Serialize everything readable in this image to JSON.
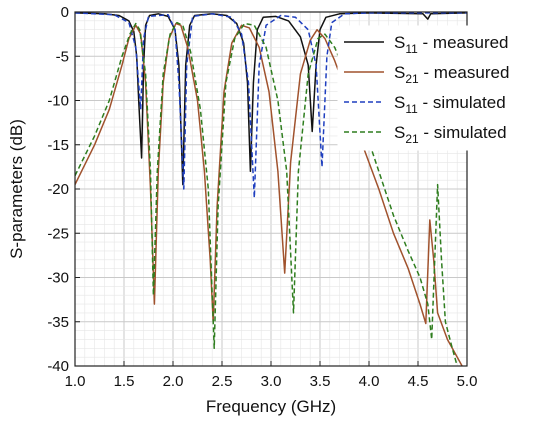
{
  "chart_data": {
    "type": "line",
    "xlabel": "Frequency (GHz)",
    "ylabel": "S-parameters (dB)",
    "xlim": [
      1.0,
      5.0
    ],
    "ylim": [
      -40,
      0
    ],
    "grid": "on (major and minor)",
    "legend_position": "top-right",
    "x_ticks": [
      "1.0",
      "1.5",
      "2.0",
      "2.5",
      "3.0",
      "3.5",
      "4.0",
      "4.5",
      "5.0"
    ],
    "y_ticks": [
      "0",
      "-5",
      "-10",
      "-15",
      "-20",
      "-25",
      "-30",
      "-35",
      "-40"
    ],
    "series": [
      {
        "name": "S11 - measured",
        "legend_main": "S",
        "legend_sub": "11",
        "legend_rest": " - measured",
        "color": "#111111",
        "dash": "solid",
        "points": [
          [
            1.0,
            -0.1
          ],
          [
            1.3,
            -0.2
          ],
          [
            1.45,
            -0.4
          ],
          [
            1.55,
            -1.0
          ],
          [
            1.6,
            -2.2
          ],
          [
            1.63,
            -5
          ],
          [
            1.65,
            -10
          ],
          [
            1.68,
            -16.5
          ],
          [
            1.7,
            -6
          ],
          [
            1.72,
            -1.5
          ],
          [
            1.76,
            -0.4
          ],
          [
            1.85,
            -0.2
          ],
          [
            1.95,
            -0.5
          ],
          [
            2.02,
            -2
          ],
          [
            2.06,
            -6
          ],
          [
            2.1,
            -19.5
          ],
          [
            2.13,
            -6
          ],
          [
            2.17,
            -1.5
          ],
          [
            2.22,
            -0.4
          ],
          [
            2.4,
            -0.2
          ],
          [
            2.55,
            -0.4
          ],
          [
            2.65,
            -1.3
          ],
          [
            2.72,
            -3.5
          ],
          [
            2.76,
            -8
          ],
          [
            2.79,
            -18
          ],
          [
            2.82,
            -8
          ],
          [
            2.86,
            -2
          ],
          [
            2.92,
            -0.6
          ],
          [
            3.05,
            -0.5
          ],
          [
            3.18,
            -1.0
          ],
          [
            3.3,
            -2.8
          ],
          [
            3.38,
            -6
          ],
          [
            3.42,
            -13.5
          ],
          [
            3.46,
            -6
          ],
          [
            3.5,
            -2
          ],
          [
            3.56,
            -0.6
          ],
          [
            3.7,
            -0.2
          ],
          [
            4.0,
            -0.1
          ],
          [
            4.55,
            -0.2
          ],
          [
            4.6,
            -0.8
          ],
          [
            4.63,
            -0.2
          ],
          [
            5.0,
            -0.1
          ]
        ]
      },
      {
        "name": "S21 - measured",
        "legend_main": "S",
        "legend_sub": "21",
        "legend_rest": " - measured",
        "color": "#a0522d",
        "dash": "solid",
        "points": [
          [
            1.0,
            -19.5
          ],
          [
            1.2,
            -15
          ],
          [
            1.35,
            -11
          ],
          [
            1.48,
            -6
          ],
          [
            1.55,
            -3
          ],
          [
            1.62,
            -1.5
          ],
          [
            1.67,
            -2.5
          ],
          [
            1.72,
            -8
          ],
          [
            1.77,
            -20
          ],
          [
            1.81,
            -33
          ],
          [
            1.85,
            -18
          ],
          [
            1.9,
            -8
          ],
          [
            1.96,
            -3
          ],
          [
            2.03,
            -1.3
          ],
          [
            2.08,
            -1.5
          ],
          [
            2.15,
            -4
          ],
          [
            2.25,
            -10
          ],
          [
            2.32,
            -18
          ],
          [
            2.38,
            -28
          ],
          [
            2.41,
            -35
          ],
          [
            2.45,
            -22
          ],
          [
            2.52,
            -9
          ],
          [
            2.6,
            -3.5
          ],
          [
            2.7,
            -1.5
          ],
          [
            2.78,
            -1.8
          ],
          [
            2.88,
            -4
          ],
          [
            2.98,
            -9
          ],
          [
            3.07,
            -18
          ],
          [
            3.14,
            -29.5
          ],
          [
            3.2,
            -17
          ],
          [
            3.3,
            -7
          ],
          [
            3.4,
            -3.2
          ],
          [
            3.47,
            -2.0
          ],
          [
            3.55,
            -3
          ],
          [
            3.65,
            -5.5
          ],
          [
            3.8,
            -10
          ],
          [
            3.95,
            -15.5
          ],
          [
            4.1,
            -20
          ],
          [
            4.25,
            -25
          ],
          [
            4.4,
            -29
          ],
          [
            4.52,
            -33
          ],
          [
            4.58,
            -35.2
          ],
          [
            4.62,
            -23.5
          ],
          [
            4.66,
            -28
          ],
          [
            4.7,
            -34
          ],
          [
            4.8,
            -37
          ],
          [
            4.95,
            -40
          ]
        ]
      },
      {
        "name": "S11 - simulated",
        "legend_main": "S",
        "legend_sub": "11",
        "legend_rest": " - simulated",
        "color": "#1f3fbf",
        "dash": "dashed",
        "points": [
          [
            1.0,
            -0.1
          ],
          [
            1.4,
            -0.3
          ],
          [
            1.55,
            -1.2
          ],
          [
            1.62,
            -4
          ],
          [
            1.67,
            -11
          ],
          [
            1.7,
            -3
          ],
          [
            1.75,
            -0.5
          ],
          [
            1.95,
            -0.3
          ],
          [
            2.02,
            -2
          ],
          [
            2.06,
            -8
          ],
          [
            2.11,
            -20
          ],
          [
            2.14,
            -6
          ],
          [
            2.2,
            -0.5
          ],
          [
            2.4,
            -0.2
          ],
          [
            2.6,
            -0.6
          ],
          [
            2.7,
            -2.5
          ],
          [
            2.77,
            -8
          ],
          [
            2.83,
            -21
          ],
          [
            2.88,
            -6
          ],
          [
            2.95,
            -1.5
          ],
          [
            3.1,
            -0.4
          ],
          [
            3.25,
            -0.6
          ],
          [
            3.38,
            -2
          ],
          [
            3.46,
            -6
          ],
          [
            3.52,
            -17.5
          ],
          [
            3.57,
            -5
          ],
          [
            3.62,
            -1.2
          ],
          [
            3.75,
            -0.2
          ],
          [
            4.0,
            -0.1
          ],
          [
            5.0,
            -0.1
          ]
        ]
      },
      {
        "name": "S21 - simulated",
        "legend_main": "S",
        "legend_sub": "21",
        "legend_rest": " - simulated",
        "color": "#2e7d1e",
        "dash": "dashed",
        "points": [
          [
            1.0,
            -18.5
          ],
          [
            1.2,
            -14
          ],
          [
            1.35,
            -10
          ],
          [
            1.48,
            -5
          ],
          [
            1.56,
            -2.5
          ],
          [
            1.62,
            -1.3
          ],
          [
            1.66,
            -2.0
          ],
          [
            1.72,
            -7
          ],
          [
            1.77,
            -18
          ],
          [
            1.8,
            -32
          ],
          [
            1.84,
            -18
          ],
          [
            1.9,
            -7
          ],
          [
            1.97,
            -2.5
          ],
          [
            2.04,
            -1.2
          ],
          [
            2.1,
            -1.5
          ],
          [
            2.18,
            -4.5
          ],
          [
            2.28,
            -11
          ],
          [
            2.36,
            -20
          ],
          [
            2.42,
            -38
          ],
          [
            2.46,
            -22
          ],
          [
            2.54,
            -8
          ],
          [
            2.63,
            -3
          ],
          [
            2.73,
            -1.3
          ],
          [
            2.83,
            -1.5
          ],
          [
            2.95,
            -4
          ],
          [
            3.07,
            -10
          ],
          [
            3.16,
            -18
          ],
          [
            3.23,
            -34
          ],
          [
            3.28,
            -18
          ],
          [
            3.38,
            -7
          ],
          [
            3.48,
            -3
          ],
          [
            3.55,
            -2.5
          ],
          [
            3.65,
            -4
          ],
          [
            3.8,
            -8
          ],
          [
            3.95,
            -13
          ],
          [
            4.1,
            -18
          ],
          [
            4.25,
            -23
          ],
          [
            4.4,
            -27
          ],
          [
            4.52,
            -30
          ],
          [
            4.6,
            -33
          ],
          [
            4.64,
            -37
          ],
          [
            4.7,
            -19.5
          ],
          [
            4.74,
            -28
          ],
          [
            4.78,
            -35
          ],
          [
            4.85,
            -38
          ],
          [
            4.9,
            -40
          ]
        ]
      }
    ]
  }
}
